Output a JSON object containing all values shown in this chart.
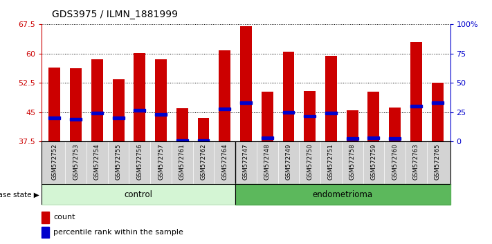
{
  "title": "GDS3975 / ILMN_1881999",
  "samples": [
    "GSM572752",
    "GSM572753",
    "GSM572754",
    "GSM572755",
    "GSM572756",
    "GSM572757",
    "GSM572761",
    "GSM572762",
    "GSM572764",
    "GSM572747",
    "GSM572748",
    "GSM572749",
    "GSM572750",
    "GSM572751",
    "GSM572758",
    "GSM572759",
    "GSM572760",
    "GSM572763",
    "GSM572765"
  ],
  "red_heights": [
    56.5,
    56.2,
    58.5,
    53.5,
    60.2,
    58.5,
    46.0,
    43.5,
    60.8,
    67.0,
    50.2,
    60.5,
    50.5,
    59.5,
    45.5,
    50.2,
    46.2,
    63.0,
    52.5
  ],
  "blue_positions": [
    43.5,
    43.2,
    44.8,
    43.5,
    45.5,
    44.5,
    37.8,
    37.8,
    45.8,
    47.5,
    38.5,
    45.0,
    44.0,
    44.8,
    38.2,
    38.5,
    38.2,
    46.5,
    47.5
  ],
  "ymin": 37.5,
  "ymax": 67.5,
  "yticks": [
    37.5,
    45.0,
    52.5,
    60.0,
    67.5
  ],
  "right_yticks": [
    0,
    25,
    50,
    75,
    100
  ],
  "control_count": 9,
  "endometrioma_count": 10,
  "red_color": "#cc0000",
  "blue_color": "#0000cc",
  "bar_width": 0.55,
  "bg_color": "#d3d3d3",
  "control_bg": "#d4f5d4",
  "endo_bg": "#5cb85c",
  "title_fontsize": 10
}
